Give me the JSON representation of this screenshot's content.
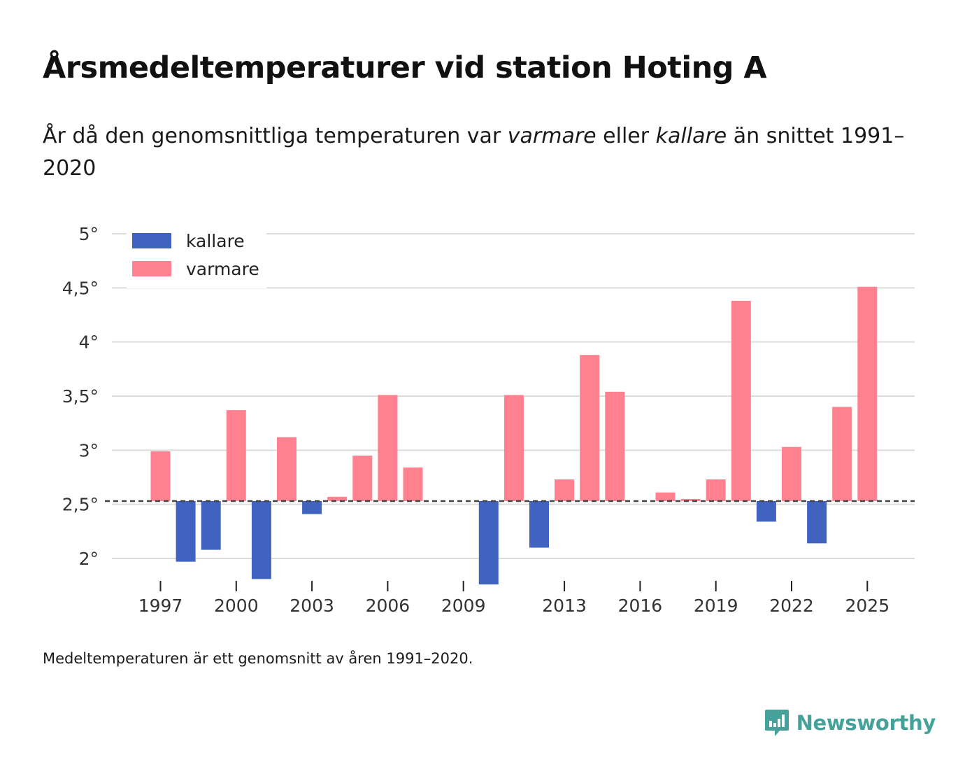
{
  "title": "Årsmedeltemperaturer vid station Hoting A",
  "subtitle": {
    "part1": "År då den genomsnittliga temperaturen var ",
    "warm_word": "varmare",
    "part2": " eller ",
    "cold_word": "kallare",
    "part3": " än snittet 1991–2020"
  },
  "footnote": "Medeltemperaturen är ett genomsnitt av åren 1991–2020.",
  "brand": {
    "name": "Newsworthy",
    "icon": "newsworthy-logo-icon",
    "color": "#45a19a"
  },
  "colors": {
    "cold": "#4063c0",
    "warm": "#ff808f",
    "grid": "#dcdcdc",
    "baseline": "#444444"
  },
  "chart_data": {
    "type": "bar",
    "title": "Årsmedeltemperaturer vid station Hoting A",
    "xlabel": "",
    "ylabel": "",
    "baseline": 2.53,
    "ylim": [
      1.75,
      5.05
    ],
    "xlim": [
      1995,
      2027
    ],
    "y_ticks": [
      2,
      2.5,
      3,
      3.5,
      4,
      4.5,
      5
    ],
    "y_tick_labels": [
      "2°",
      "2,5°",
      "3°",
      "3,5°",
      "4°",
      "4,5°",
      "5°"
    ],
    "x_ticks": [
      1997,
      2000,
      2003,
      2006,
      2009,
      2013,
      2016,
      2019,
      2022,
      2025
    ],
    "x_tick_labels": [
      "1997",
      "2000",
      "2003",
      "2006",
      "2009",
      "2013",
      "2016",
      "2019",
      "2022",
      "2025"
    ],
    "legend": [
      {
        "label": "kallare",
        "key": "cold"
      },
      {
        "label": "varmare",
        "key": "warm"
      }
    ],
    "legend_position": "top-left",
    "grid": true,
    "years": [
      1997,
      1998,
      1999,
      2000,
      2001,
      2002,
      2003,
      2004,
      2005,
      2006,
      2007,
      2010,
      2011,
      2012,
      2013,
      2014,
      2015,
      2017,
      2018,
      2019,
      2020,
      2021,
      2022,
      2023,
      2024,
      2025
    ],
    "values": [
      2.99,
      1.97,
      2.08,
      3.37,
      1.81,
      3.12,
      2.41,
      2.57,
      2.95,
      3.51,
      2.84,
      1.76,
      3.51,
      2.1,
      2.73,
      3.88,
      3.54,
      2.61,
      2.55,
      2.73,
      4.38,
      2.34,
      3.03,
      2.14,
      3.4,
      4.51
    ]
  }
}
